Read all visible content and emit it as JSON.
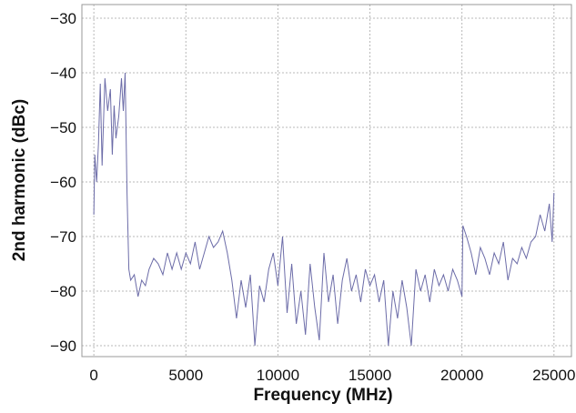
{
  "chart_data": {
    "type": "line",
    "x_label": "Frequency (MHz)",
    "y_label": "2nd harmonic (dBc)",
    "color": "#6c6ca8",
    "grid": true,
    "xlim": [
      -650,
      25950
    ],
    "ylim": [
      -92,
      -27.5
    ],
    "xticks": [
      0,
      5000,
      10000,
      15000,
      20000,
      25000
    ],
    "yticks": [
      {
        "value": -30,
        "label": "−30"
      },
      {
        "value": -40,
        "label": "−40"
      },
      {
        "value": -50,
        "label": "−50"
      },
      {
        "value": -60,
        "label": "−60"
      },
      {
        "value": -70,
        "label": "−70"
      },
      {
        "value": -80,
        "label": "−80"
      },
      {
        "value": -90,
        "label": "−90"
      }
    ],
    "x": [
      0,
      50,
      150,
      250,
      350,
      450,
      600,
      750,
      900,
      1000,
      1100,
      1200,
      1350,
      1500,
      1600,
      1700,
      1800,
      1900,
      2000,
      2200,
      2400,
      2600,
      2800,
      3000,
      3250,
      3500,
      3750,
      4000,
      4250,
      4500,
      4750,
      5000,
      5250,
      5500,
      5750,
      6000,
      6250,
      6500,
      6750,
      7000,
      7250,
      7500,
      7750,
      8000,
      8250,
      8500,
      8750,
      9000,
      9250,
      9500,
      9750,
      10000,
      10250,
      10500,
      10750,
      11000,
      11250,
      11500,
      11750,
      12000,
      12250,
      12500,
      12750,
      13000,
      13250,
      13500,
      13750,
      14000,
      14250,
      14500,
      14750,
      15000,
      15250,
      15500,
      15750,
      16000,
      16250,
      16500,
      16750,
      17000,
      17250,
      17500,
      17750,
      18000,
      18250,
      18500,
      18750,
      19000,
      19250,
      19500,
      19750,
      20000,
      20050,
      20250,
      20500,
      20750,
      21000,
      21250,
      21500,
      21750,
      22000,
      22250,
      22500,
      22750,
      23000,
      23250,
      23500,
      23750,
      24000,
      24250,
      24500,
      24750,
      24900,
      25000
    ],
    "values": [
      -66,
      -55,
      -60,
      -53,
      -42,
      -57,
      -41,
      -47,
      -43,
      -55,
      -46,
      -52,
      -48,
      -41,
      -47,
      -40,
      -62,
      -76,
      -78,
      -77,
      -81,
      -78,
      -79,
      -76,
      -74,
      -75,
      -77,
      -73,
      -76,
      -73,
      -76,
      -73,
      -75,
      -71,
      -76,
      -73,
      -70,
      -72,
      -71,
      -69,
      -73,
      -78,
      -85,
      -78,
      -83,
      -77,
      -90,
      -79,
      -82,
      -76,
      -73,
      -79,
      -70,
      -84,
      -75,
      -86,
      -80,
      -88,
      -75,
      -83,
      -89,
      -73,
      -82,
      -77,
      -86,
      -78,
      -74,
      -80,
      -77,
      -82,
      -76,
      -79,
      -77,
      -82,
      -78,
      -90,
      -80,
      -85,
      -78,
      -83,
      -90,
      -76,
      -80,
      -77,
      -82,
      -76,
      -79,
      -77,
      -80,
      -76,
      -78,
      -81,
      -68,
      -70,
      -73,
      -77,
      -72,
      -74,
      -77,
      -73,
      -75,
      -71,
      -78,
      -74,
      -75,
      -72,
      -74,
      -71,
      -70,
      -66,
      -69,
      -64,
      -71,
      -62
    ]
  }
}
